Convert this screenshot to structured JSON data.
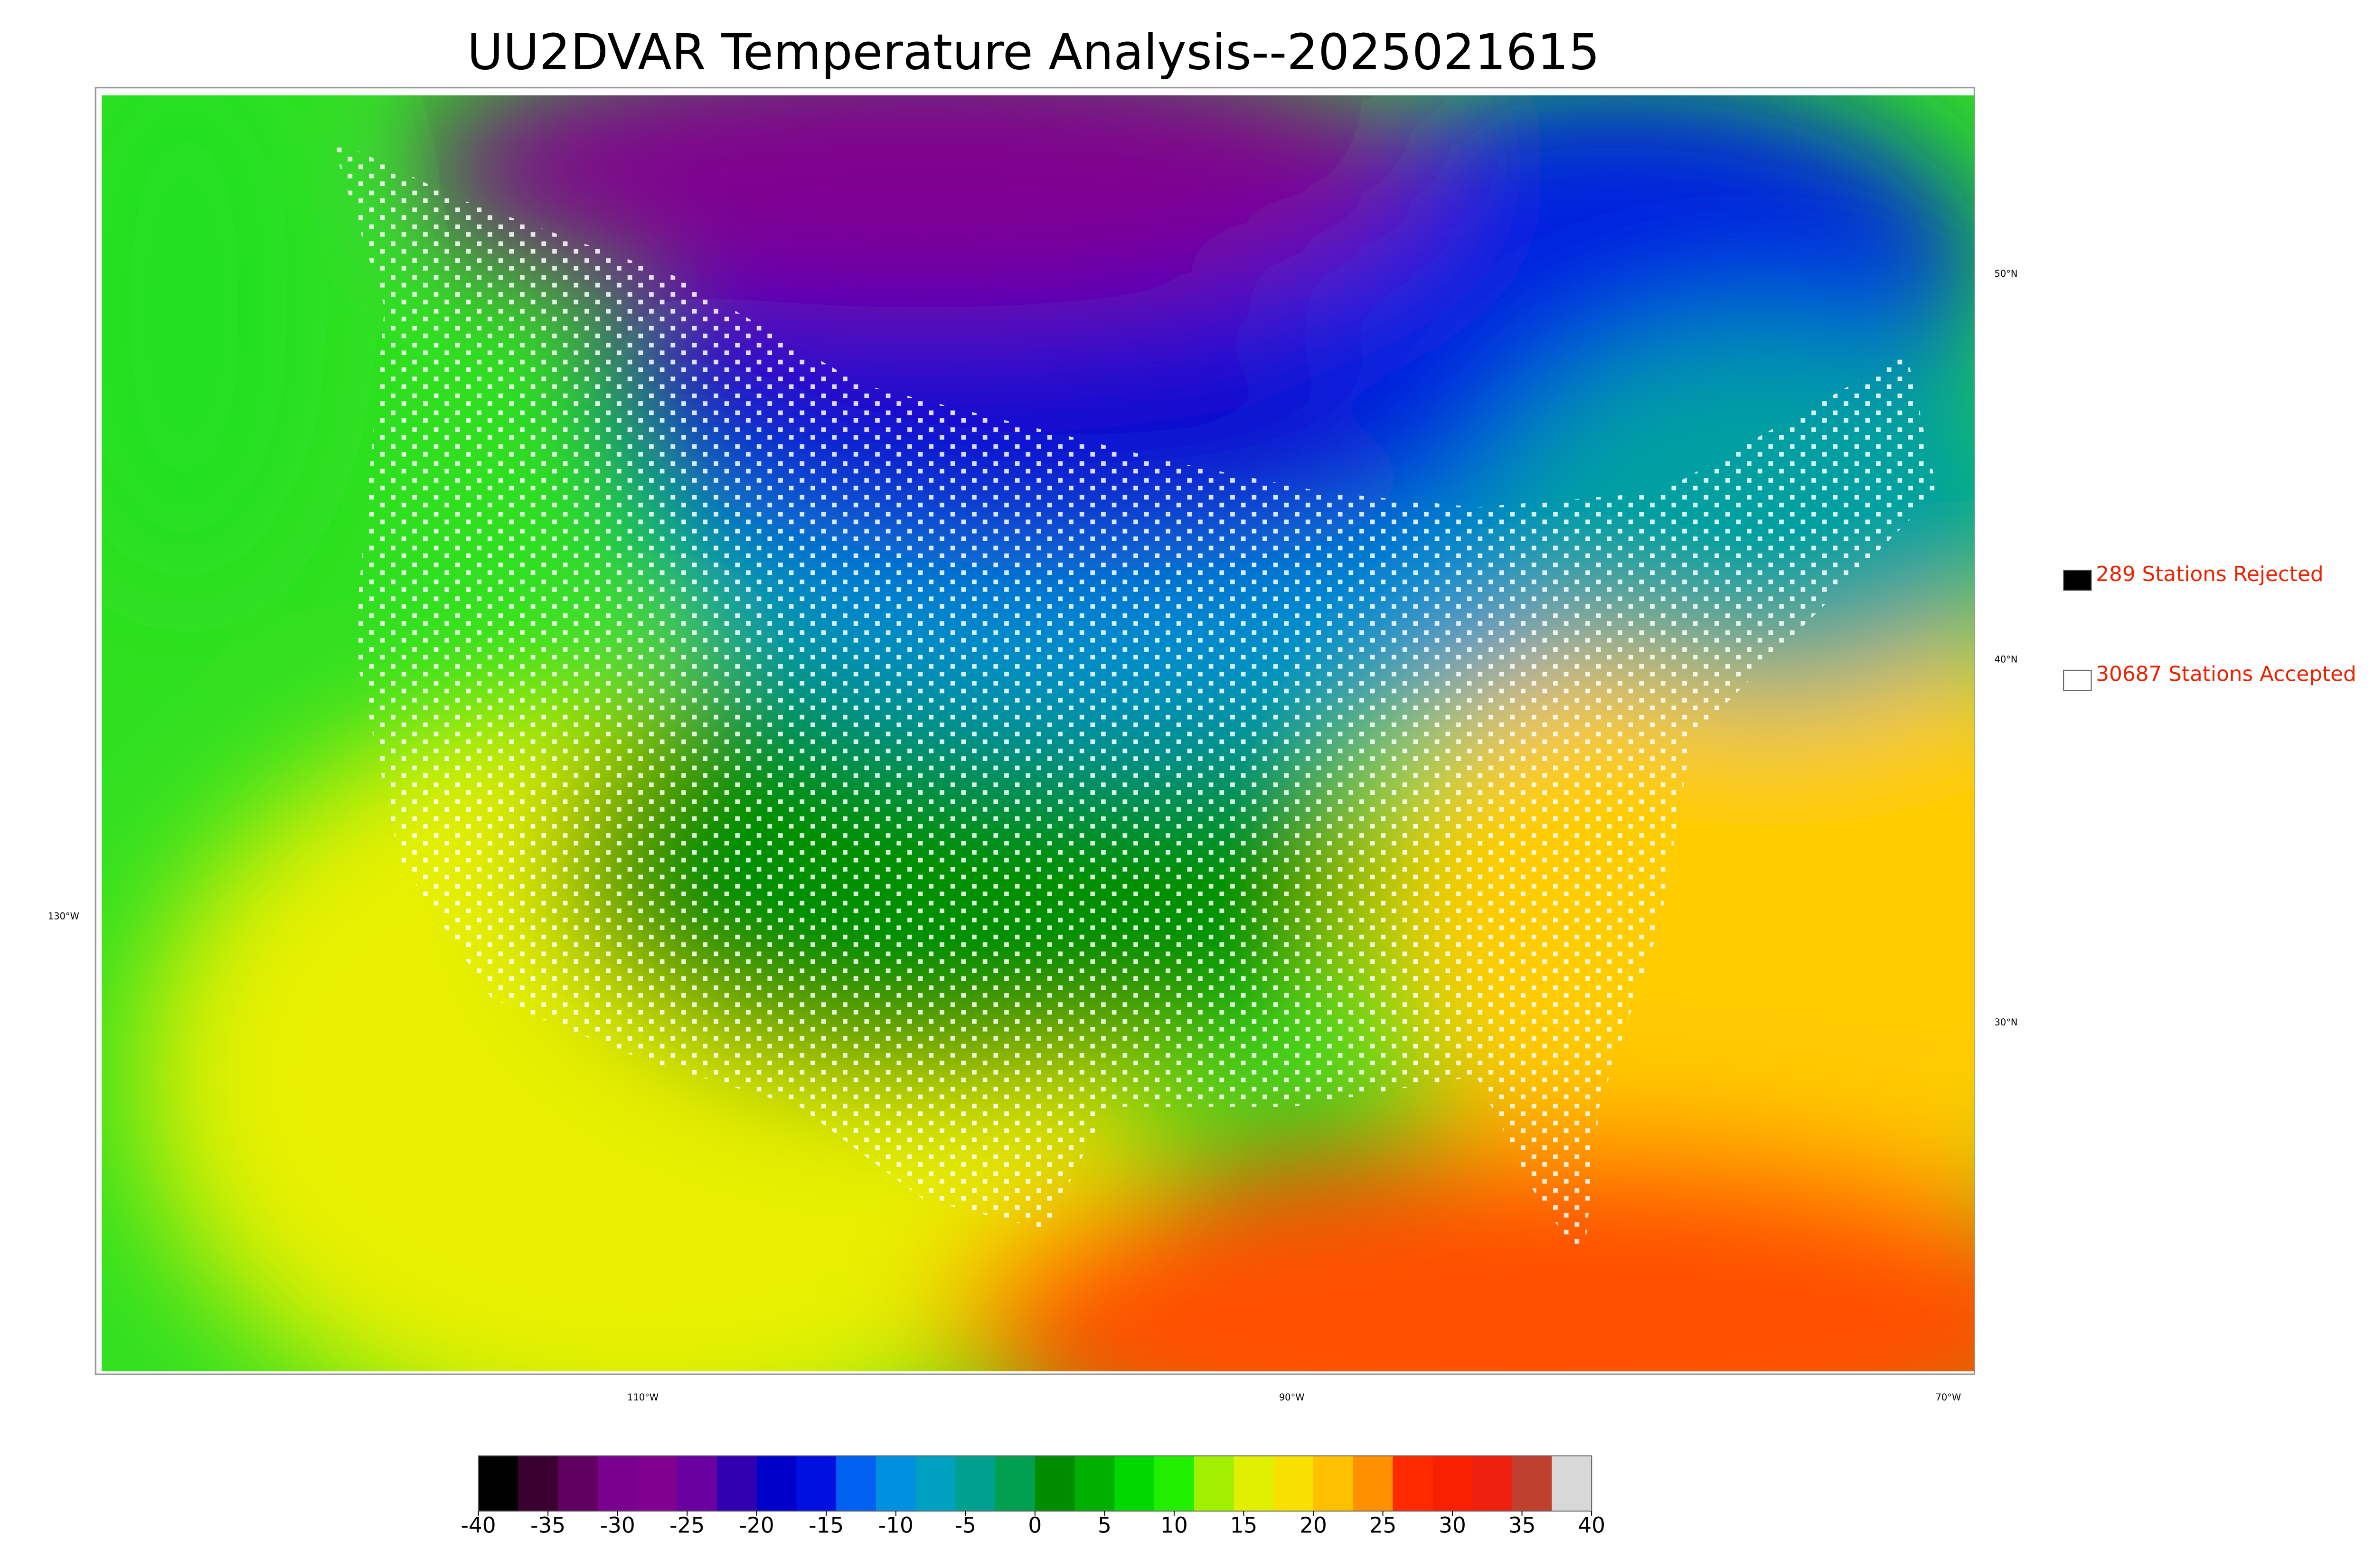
{
  "title": "UU2DVAR Temperature Analysis--2025021615",
  "graticule": {
    "latitudes": [
      "50°N",
      "40°N",
      "30°N"
    ],
    "longitudes": [
      "130°W",
      "110°W",
      "90°W",
      "70°W"
    ]
  },
  "legend": [
    {
      "label": "289 Stations Rejected",
      "color": "#000000"
    },
    {
      "label": "30687 Stations Accepted",
      "color": "#ffffff"
    }
  ],
  "colorbar": {
    "min": -40,
    "max": 40,
    "ticks": [
      -40,
      -35,
      -30,
      -25,
      -20,
      -15,
      -10,
      -5,
      0,
      5,
      10,
      15,
      20,
      25,
      30,
      35,
      40
    ],
    "colors": [
      "#000000",
      "#3a0030",
      "#600060",
      "#7a0090",
      "#800090",
      "#6a00a0",
      "#3000b0",
      "#0000c8",
      "#0010e0",
      "#0060f0",
      "#0090e0",
      "#00a0c0",
      "#00a090",
      "#00a050",
      "#008c00",
      "#00b000",
      "#00d800",
      "#20f000",
      "#a0f000",
      "#e0f000",
      "#f8e000",
      "#ffc000",
      "#ff9000",
      "#ff2a00",
      "#f82000",
      "#f02010",
      "#c04030",
      "#d8d8d8"
    ]
  }
}
